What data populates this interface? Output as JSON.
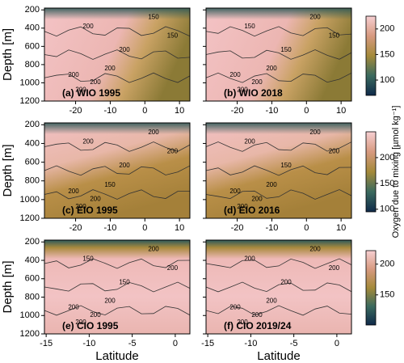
{
  "chart_data": [
    {
      "type": "heatmap",
      "title": "(a) WIO 1995",
      "ylabel": "Depth [m]",
      "xlim": [
        -29,
        13
      ],
      "xticks": [
        -20,
        -10,
        0,
        10
      ],
      "ylim": [
        1200,
        180
      ],
      "yticks": [
        200,
        400,
        600,
        800,
        1000,
        1200
      ],
      "contour_labels": [
        "200",
        "200",
        "200",
        "200",
        "200",
        "200",
        "150",
        "150"
      ]
    },
    {
      "type": "heatmap",
      "title": "(b) WIO 2018",
      "xlim": [
        -29,
        13
      ],
      "xticks": [
        -20,
        -10,
        0,
        10
      ],
      "ylim": [
        1200,
        180
      ],
      "contour_labels": [
        "150",
        "150",
        "200",
        "200",
        "200",
        "200",
        "150",
        "200"
      ],
      "colorbar": {
        "lim": [
          70,
          225
        ],
        "ticks": [
          100,
          150,
          200
        ]
      }
    },
    {
      "type": "heatmap",
      "title": "(c) EIO 1995",
      "ylabel": "Depth [m]",
      "xlim": [
        -29,
        13
      ],
      "xticks": [
        -20,
        -10,
        0,
        10
      ],
      "ylim": [
        1200,
        180
      ],
      "yticks": [
        200,
        400,
        600,
        800,
        1000,
        1200
      ],
      "contour_labels": [
        "200",
        "200",
        "150",
        "200",
        "200",
        "200",
        "200",
        "200"
      ]
    },
    {
      "type": "heatmap",
      "title": "(d) EIO 2016",
      "xlim": [
        -29,
        13
      ],
      "xticks": [
        -20,
        -10,
        0,
        10
      ],
      "ylim": [
        1200,
        180
      ],
      "contour_labels": [
        "200",
        "150",
        "200",
        "200",
        "200",
        "200",
        "200",
        "200"
      ],
      "colorbar": {
        "lim": [
          95,
          250
        ],
        "ticks": [
          100,
          150,
          200
        ],
        "label": "Oxygen due to mixing [µmol kg⁻¹]"
      }
    },
    {
      "type": "heatmap",
      "title": "(e) CIO 1995",
      "ylabel": "Depth [m]",
      "xlabel": "Latitude",
      "xlim": [
        -15.2,
        1.7
      ],
      "xticks": [
        -15,
        -10,
        -5,
        0
      ],
      "ylim": [
        1200,
        180
      ],
      "yticks": [
        200,
        400,
        600,
        800,
        1000,
        1200
      ],
      "contour_labels": [
        "150",
        "150",
        "200",
        "200",
        "200",
        "200",
        "200",
        "200"
      ]
    },
    {
      "type": "heatmap",
      "title": "(f) CIO 2019/24",
      "xlabel": "Latitude",
      "xlim": [
        -15.2,
        1.7
      ],
      "xticks": [
        -15,
        -10,
        -5,
        0
      ],
      "ylim": [
        1200,
        180
      ],
      "contour_labels": [
        "200",
        "200",
        "200",
        "200",
        "200",
        "200",
        "200",
        "200"
      ],
      "colorbar": {
        "lim": [
          101,
          222
        ],
        "ticks": [
          150,
          200
        ]
      }
    }
  ]
}
